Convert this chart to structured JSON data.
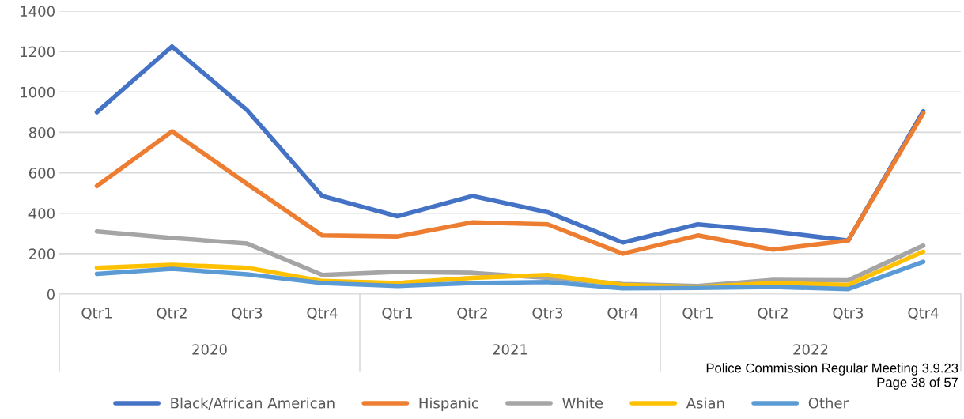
{
  "chart_data": {
    "type": "line",
    "categories": [
      "Qtr1",
      "Qtr2",
      "Qtr3",
      "Qtr4",
      "Qtr1",
      "Qtr2",
      "Qtr3",
      "Qtr4",
      "Qtr1",
      "Qtr2",
      "Qtr3",
      "Qtr4"
    ],
    "series": [
      {
        "name": "Black/African American",
        "color": "#4472c4",
        "values": [
          900,
          1225,
          910,
          485,
          385,
          485,
          405,
          255,
          345,
          310,
          265,
          905
        ]
      },
      {
        "name": "Hispanic",
        "color": "#ed7d31",
        "values": [
          535,
          805,
          545,
          290,
          285,
          355,
          345,
          200,
          290,
          220,
          265,
          895
        ]
      },
      {
        "name": "White",
        "color": "#a5a5a5",
        "values": [
          310,
          278,
          250,
          95,
          110,
          105,
          80,
          50,
          40,
          70,
          68,
          240
        ]
      },
      {
        "name": "Asian",
        "color": "#ffc000",
        "values": [
          130,
          145,
          130,
          65,
          55,
          80,
          95,
          45,
          35,
          55,
          45,
          210
        ]
      },
      {
        "name": "Other",
        "color": "#5b9bd5",
        "values": [
          100,
          125,
          98,
          55,
          40,
          55,
          60,
          28,
          30,
          35,
          25,
          160
        ]
      }
    ],
    "ylim": [
      0,
      1400
    ],
    "yticks": [
      0,
      200,
      400,
      600,
      800,
      1000,
      1200,
      1400
    ],
    "grid": "y",
    "legend": "bottom",
    "marker": "none",
    "line_style": "solid",
    "annotations": [
      "2020",
      "2021",
      "2022",
      "Police Commission Regular Meeting 3.9.23",
      "Page 38 of 57"
    ]
  }
}
